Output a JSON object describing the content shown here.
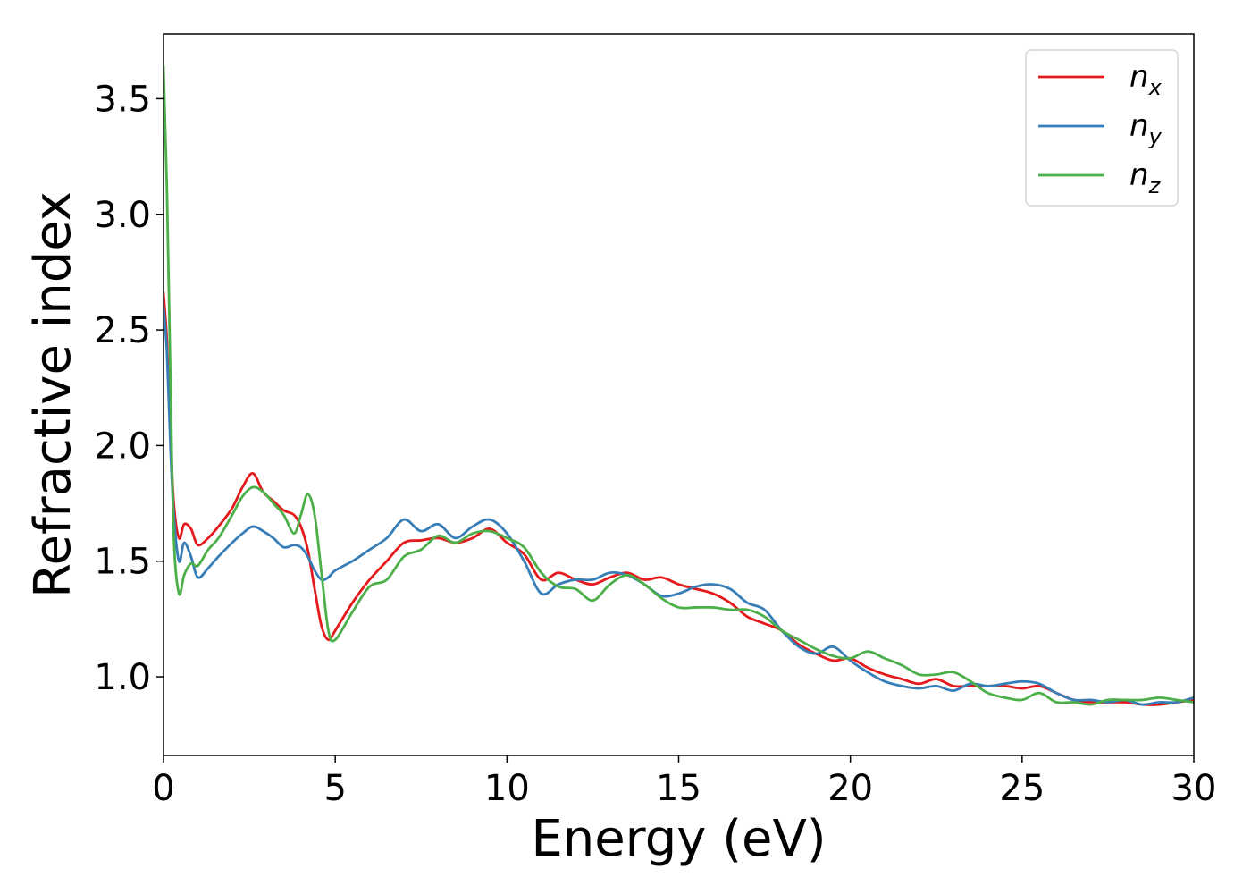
{
  "chart_data": {
    "type": "line",
    "xlabel": "Energy (eV)",
    "ylabel": "Refractive index",
    "xlim": [
      0,
      30
    ],
    "ylim": [
      0.66,
      3.78
    ],
    "xticks": [
      0,
      5,
      10,
      15,
      20,
      25,
      30
    ],
    "yticks": [
      1.0,
      1.5,
      2.0,
      2.5,
      3.0,
      3.5
    ],
    "xtick_labels": [
      "0",
      "5",
      "10",
      "15",
      "20",
      "25",
      "30"
    ],
    "ytick_labels": [
      "1.0",
      "1.5",
      "2.0",
      "2.5",
      "3.0",
      "3.5"
    ],
    "grid": false,
    "legend_position": "top-right",
    "series": [
      {
        "name": "n_x",
        "label_main": "n",
        "label_sub": "x",
        "color": "#e41a1c",
        "x": [
          0,
          0.1,
          0.2,
          0.3,
          0.45,
          0.6,
          0.8,
          1.0,
          1.3,
          1.6,
          2.0,
          2.3,
          2.6,
          2.9,
          3.2,
          3.5,
          3.8,
          4.0,
          4.2,
          4.4,
          4.6,
          4.8,
          5.0,
          5.5,
          6.0,
          6.5,
          7.0,
          7.5,
          8.0,
          8.5,
          9.0,
          9.5,
          10.0,
          10.5,
          11.0,
          11.5,
          12.0,
          12.5,
          13.0,
          13.5,
          14.0,
          14.5,
          15.0,
          15.5,
          16.0,
          16.5,
          17.0,
          17.5,
          18.0,
          18.5,
          19.0,
          19.5,
          20.0,
          20.5,
          21.0,
          21.5,
          22.0,
          22.5,
          23.0,
          23.5,
          24.0,
          24.5,
          25.0,
          25.5,
          26.0,
          26.5,
          27.0,
          27.5,
          28.0,
          28.5,
          29.0,
          29.5,
          30.0
        ],
        "y": [
          2.66,
          2.45,
          2.05,
          1.75,
          1.6,
          1.66,
          1.64,
          1.57,
          1.6,
          1.65,
          1.73,
          1.82,
          1.88,
          1.8,
          1.76,
          1.72,
          1.7,
          1.65,
          1.55,
          1.38,
          1.22,
          1.16,
          1.2,
          1.32,
          1.42,
          1.5,
          1.58,
          1.59,
          1.6,
          1.58,
          1.6,
          1.64,
          1.58,
          1.53,
          1.42,
          1.45,
          1.42,
          1.4,
          1.43,
          1.45,
          1.42,
          1.43,
          1.4,
          1.38,
          1.36,
          1.32,
          1.26,
          1.23,
          1.2,
          1.14,
          1.1,
          1.07,
          1.08,
          1.04,
          1.01,
          0.99,
          0.97,
          0.99,
          0.96,
          0.96,
          0.96,
          0.96,
          0.95,
          0.96,
          0.93,
          0.9,
          0.89,
          0.89,
          0.89,
          0.88,
          0.88,
          0.89,
          0.9
        ]
      },
      {
        "name": "n_y",
        "label_main": "n",
        "label_sub": "y",
        "color": "#377eb8",
        "x": [
          0,
          0.1,
          0.2,
          0.3,
          0.45,
          0.6,
          0.8,
          1.0,
          1.3,
          1.6,
          2.0,
          2.3,
          2.6,
          2.9,
          3.2,
          3.5,
          3.8,
          4.0,
          4.2,
          4.4,
          4.6,
          4.8,
          5.0,
          5.5,
          6.0,
          6.5,
          7.0,
          7.5,
          8.0,
          8.5,
          9.0,
          9.5,
          10.0,
          10.5,
          11.0,
          11.5,
          12.0,
          12.5,
          13.0,
          13.5,
          14.0,
          14.5,
          15.0,
          15.5,
          16.0,
          16.5,
          17.0,
          17.5,
          18.0,
          18.5,
          19.0,
          19.5,
          20.0,
          20.5,
          21.0,
          21.5,
          22.0,
          22.5,
          23.0,
          23.5,
          24.0,
          24.5,
          25.0,
          25.5,
          26.0,
          26.5,
          27.0,
          27.5,
          28.0,
          28.5,
          29.0,
          29.5,
          30.0
        ],
        "y": [
          2.6,
          2.4,
          2.0,
          1.7,
          1.5,
          1.58,
          1.52,
          1.43,
          1.47,
          1.52,
          1.58,
          1.62,
          1.65,
          1.63,
          1.6,
          1.56,
          1.57,
          1.56,
          1.52,
          1.46,
          1.42,
          1.43,
          1.46,
          1.5,
          1.55,
          1.6,
          1.68,
          1.63,
          1.66,
          1.6,
          1.65,
          1.68,
          1.62,
          1.5,
          1.36,
          1.4,
          1.42,
          1.42,
          1.45,
          1.44,
          1.4,
          1.35,
          1.36,
          1.39,
          1.4,
          1.38,
          1.32,
          1.29,
          1.2,
          1.13,
          1.1,
          1.13,
          1.07,
          1.02,
          0.98,
          0.96,
          0.95,
          0.96,
          0.94,
          0.97,
          0.96,
          0.97,
          0.98,
          0.97,
          0.93,
          0.9,
          0.9,
          0.89,
          0.9,
          0.88,
          0.89,
          0.89,
          0.91
        ]
      },
      {
        "name": "n_z",
        "label_main": "n",
        "label_sub": "z",
        "color": "#4daf4a",
        "x": [
          0,
          0.1,
          0.2,
          0.3,
          0.45,
          0.6,
          0.8,
          1.0,
          1.3,
          1.6,
          2.0,
          2.3,
          2.6,
          2.9,
          3.2,
          3.5,
          3.8,
          4.0,
          4.2,
          4.4,
          4.6,
          4.8,
          5.0,
          5.5,
          6.0,
          6.5,
          7.0,
          7.5,
          8.0,
          8.5,
          9.0,
          9.5,
          10.0,
          10.5,
          11.0,
          11.5,
          12.0,
          12.5,
          13.0,
          13.5,
          14.0,
          14.5,
          15.0,
          15.5,
          16.0,
          16.5,
          17.0,
          17.5,
          18.0,
          18.5,
          19.0,
          19.5,
          20.0,
          20.5,
          21.0,
          21.5,
          22.0,
          22.5,
          23.0,
          23.5,
          24.0,
          24.5,
          25.0,
          25.5,
          26.0,
          26.5,
          27.0,
          27.5,
          28.0,
          28.5,
          29.0,
          29.5,
          30.0
        ],
        "y": [
          3.64,
          3.1,
          2.3,
          1.6,
          1.36,
          1.44,
          1.49,
          1.48,
          1.55,
          1.6,
          1.7,
          1.78,
          1.82,
          1.8,
          1.75,
          1.7,
          1.62,
          1.7,
          1.79,
          1.7,
          1.45,
          1.2,
          1.16,
          1.28,
          1.39,
          1.42,
          1.52,
          1.55,
          1.61,
          1.58,
          1.62,
          1.63,
          1.6,
          1.56,
          1.45,
          1.39,
          1.38,
          1.33,
          1.4,
          1.44,
          1.4,
          1.34,
          1.3,
          1.3,
          1.3,
          1.29,
          1.29,
          1.26,
          1.2,
          1.16,
          1.12,
          1.09,
          1.08,
          1.11,
          1.08,
          1.05,
          1.01,
          1.01,
          1.02,
          0.98,
          0.93,
          0.91,
          0.9,
          0.93,
          0.89,
          0.89,
          0.88,
          0.9,
          0.9,
          0.9,
          0.91,
          0.9,
          0.89
        ]
      }
    ]
  }
}
